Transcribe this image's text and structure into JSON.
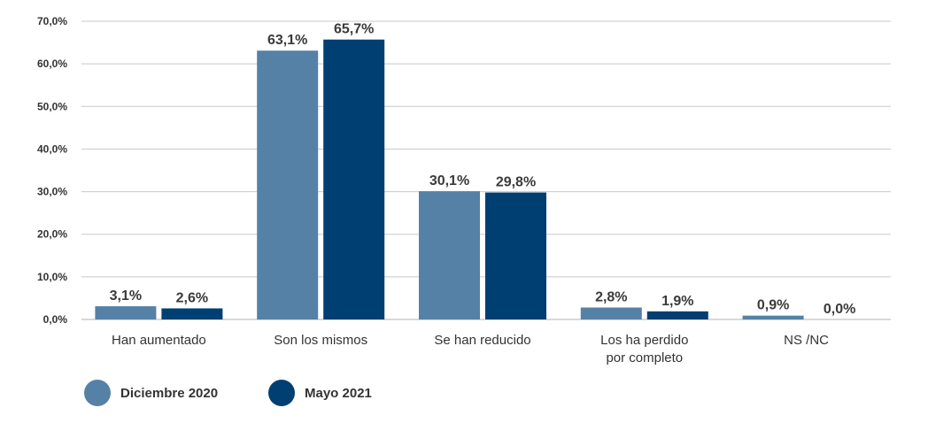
{
  "chart_data": {
    "type": "bar",
    "categories": [
      [
        "Han aumentado"
      ],
      [
        "Son los mismos"
      ],
      [
        "Se han reducido"
      ],
      [
        "Los ha perdido",
        "por completo"
      ],
      [
        "NS /NC"
      ]
    ],
    "series": [
      {
        "name": "Diciembre 2020",
        "color": "#5681A6",
        "values": [
          3.1,
          63.1,
          30.1,
          2.8,
          0.9
        ],
        "labels": [
          "3,1%",
          "63,1%",
          "30,1%",
          "2,8%",
          "0,9%"
        ]
      },
      {
        "name": "Mayo 2021",
        "color": "#003F72",
        "values": [
          2.6,
          65.7,
          29.8,
          1.9,
          0.0
        ],
        "labels": [
          "2,6%",
          "65,7%",
          "29,8%",
          "1,9%",
          "0,0%"
        ]
      }
    ],
    "yticks": [
      0,
      10,
      20,
      30,
      40,
      50,
      60,
      70
    ],
    "ytick_labels": [
      "0,0%",
      "10,0%",
      "20,0%",
      "30,0%",
      "40,0%",
      "50,0%",
      "60,0%",
      "70,0%"
    ],
    "ylim": [
      0,
      70
    ],
    "grid": true,
    "legend": "bottom-left",
    "title": "",
    "xlabel": "",
    "ylabel": ""
  }
}
